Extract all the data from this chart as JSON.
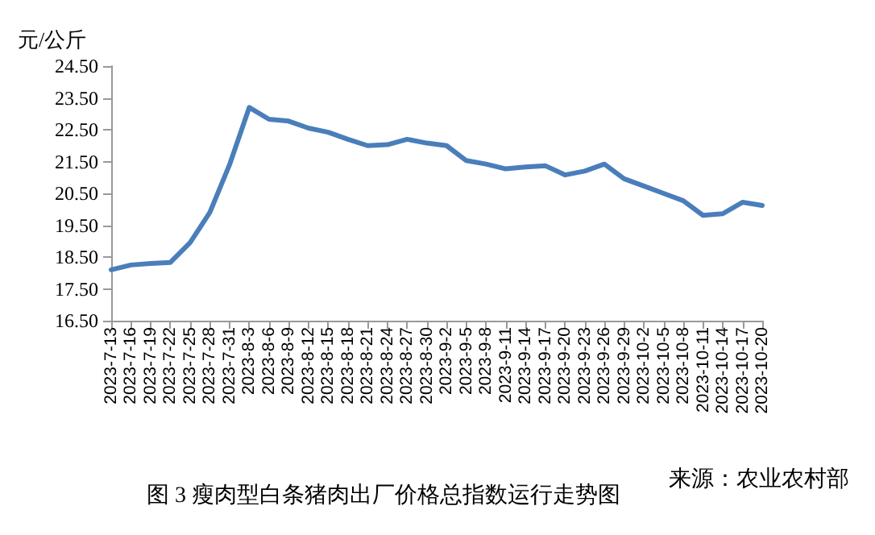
{
  "chart_data": {
    "type": "line",
    "title": "图 3 瘦肉型白条猪肉出厂价格总指数运行走势图",
    "ylabel": "元/公斤",
    "annotations": [
      "来源：农业农村部"
    ],
    "categories": [
      "2023-7-13",
      "2023-7-16",
      "2023-7-19",
      "2023-7-22",
      "2023-7-25",
      "2023-7-28",
      "2023-7-31",
      "2023-8-3",
      "2023-8-6",
      "2023-8-9",
      "2023-8-12",
      "2023-8-15",
      "2023-8-18",
      "2023-8-21",
      "2023-8-24",
      "2023-8-27",
      "2023-8-30",
      "2023-9-2",
      "2023-9-5",
      "2023-9-8",
      "2023-9-11",
      "2023-9-14",
      "2023-9-17",
      "2023-9-20",
      "2023-9-23",
      "2023-9-26",
      "2023-9-29",
      "2023-10-2",
      "2023-10-5",
      "2023-10-8",
      "2023-10-11",
      "2023-10-14",
      "2023-10-17",
      "2023-10-20"
    ],
    "series": [
      {
        "color": "#4a7ebb",
        "values": [
          18.1,
          18.25,
          18.3,
          18.33,
          18.95,
          19.9,
          21.4,
          23.2,
          22.83,
          22.77,
          22.55,
          22.42,
          22.2,
          22.0,
          22.03,
          22.2,
          22.08,
          22.0,
          21.53,
          21.42,
          21.27,
          21.33,
          21.37,
          21.08,
          21.2,
          21.42,
          20.96,
          20.73,
          20.5,
          20.27,
          19.81,
          19.86,
          20.22,
          20.12
        ]
      }
    ],
    "ylim": [
      16.5,
      24.5
    ],
    "yticks": [
      {
        "value": 16.5,
        "label": "16.50"
      },
      {
        "value": 17.5,
        "label": "17.50"
      },
      {
        "value": 18.5,
        "label": "18.50"
      },
      {
        "value": 19.5,
        "label": "19.50"
      },
      {
        "value": 20.5,
        "label": "20.50"
      },
      {
        "value": 21.5,
        "label": "21.50"
      },
      {
        "value": 22.5,
        "label": "22.50"
      },
      {
        "value": 23.5,
        "label": "23.50"
      },
      {
        "value": 24.5,
        "label": "24.50"
      }
    ],
    "grid": false,
    "marker": "none",
    "line_style": "solid"
  }
}
